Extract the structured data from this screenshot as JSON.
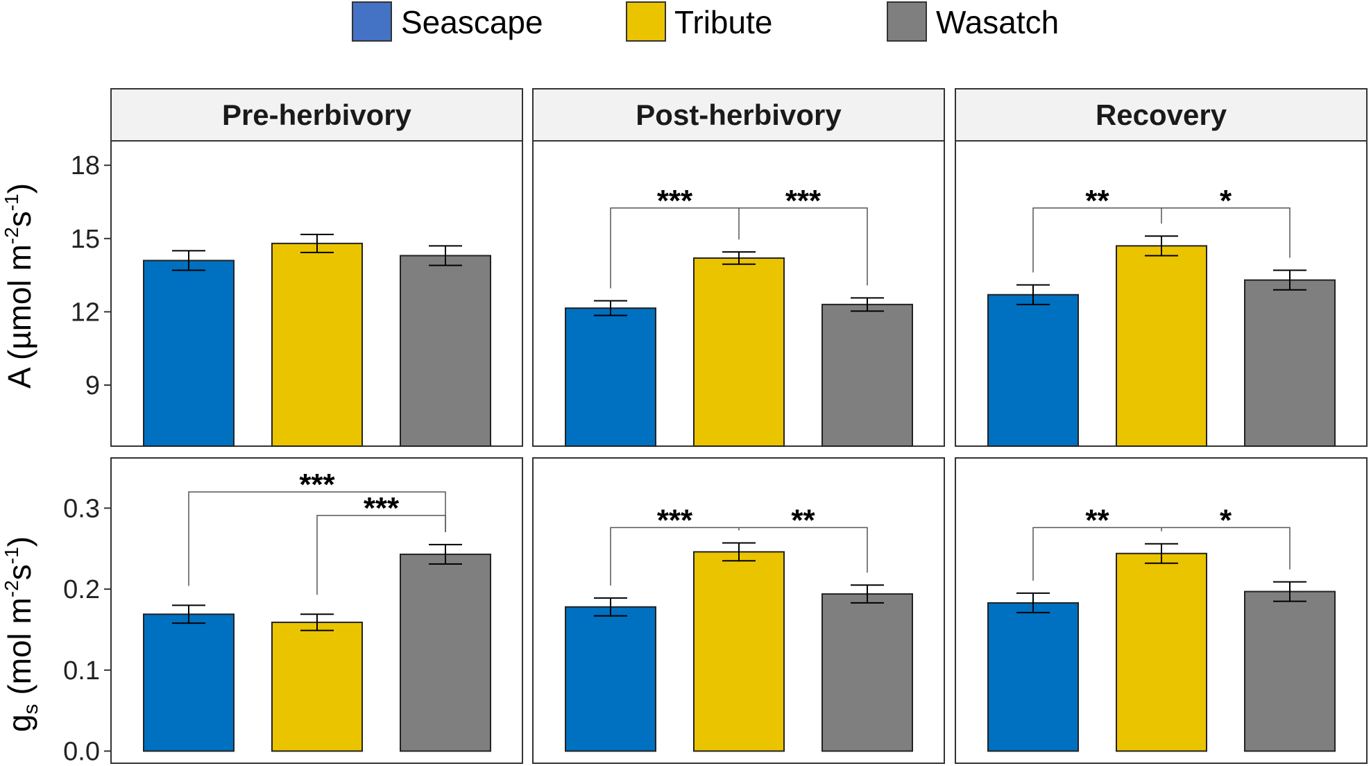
{
  "colors": {
    "seascape": "#0070C0",
    "tribute": "#EBC400",
    "wasatch": "#7F7F7F",
    "legend_seascape": "#4472C4",
    "strip_bg": "#F2F2F2"
  },
  "legend": [
    {
      "name": "Seascape",
      "color_key": "legend_seascape"
    },
    {
      "name": "Tribute",
      "color_key": "tribute"
    },
    {
      "name": "Wasatch",
      "color_key": "wasatch"
    }
  ],
  "y_axis_titles": {
    "top": {
      "main": "A (µmol m",
      "sup1": "-2",
      "mid": "s",
      "sup2": "-1",
      "end": ")"
    },
    "bottom": {
      "main": "g",
      "sub": "s",
      "rest": " (mol m",
      "sup1": "-2",
      "mid": "s",
      "sup2": "-1",
      "end": ")"
    }
  },
  "chart_data": {
    "type": "bar",
    "facets": [
      "Pre-herbivory",
      "Post-herbivory",
      "Recovery"
    ],
    "categories": [
      "Seascape",
      "Tribute",
      "Wasatch"
    ],
    "rows": [
      {
        "measure": "A",
        "ylim": [
          6.5,
          19
        ],
        "ticks": [
          9,
          12,
          15,
          18
        ],
        "tick_labels": [
          "9",
          "12",
          "15",
          "18"
        ],
        "panels": [
          {
            "facet": "Pre-herbivory",
            "values": [
              14.1,
              14.8,
              14.3
            ],
            "errors": [
              0.4,
              0.37,
              0.4
            ],
            "brackets": []
          },
          {
            "facet": "Post-herbivory",
            "values": [
              12.15,
              14.2,
              12.3
            ],
            "errors": [
              0.3,
              0.25,
              0.27
            ],
            "brackets": [
              {
                "type": "split",
                "center": 1,
                "left": 0,
                "right": 2,
                "y": 16.25,
                "labels": [
                  "***",
                  "***"
                ]
              }
            ]
          },
          {
            "facet": "Recovery",
            "values": [
              12.7,
              14.7,
              13.3
            ],
            "errors": [
              0.4,
              0.4,
              0.4
            ],
            "brackets": [
              {
                "type": "split",
                "center": 1,
                "left": 0,
                "right": 2,
                "y": 16.25,
                "labels": [
                  "**",
                  "*"
                ]
              }
            ]
          }
        ]
      },
      {
        "measure": "gs",
        "ylim": [
          -0.015,
          0.362
        ],
        "ticks": [
          0.0,
          0.1,
          0.2,
          0.3
        ],
        "tick_labels": [
          "0.0",
          "0.1",
          "0.2",
          "0.3"
        ],
        "panels": [
          {
            "facet": "Pre-herbivory",
            "values": [
              0.169,
              0.159,
              0.243
            ],
            "errors": [
              0.011,
              0.01,
              0.012
            ],
            "brackets": [
              {
                "type": "pair",
                "from": 0,
                "to": 2,
                "y": 0.32,
                "label": "***"
              },
              {
                "type": "pair",
                "from": 1,
                "to": 2,
                "y": 0.291,
                "label": "***"
              }
            ]
          },
          {
            "facet": "Post-herbivory",
            "values": [
              0.178,
              0.246,
              0.194
            ],
            "errors": [
              0.011,
              0.011,
              0.011
            ],
            "brackets": [
              {
                "type": "split",
                "center": 1,
                "left": 0,
                "right": 2,
                "y": 0.276,
                "labels": [
                  "***",
                  "**"
                ]
              }
            ]
          },
          {
            "facet": "Recovery",
            "values": [
              0.183,
              0.244,
              0.197
            ],
            "errors": [
              0.012,
              0.012,
              0.012
            ],
            "brackets": [
              {
                "type": "split",
                "center": 1,
                "left": 0,
                "right": 2,
                "y": 0.276,
                "labels": [
                  "**",
                  "*"
                ]
              }
            ]
          }
        ]
      }
    ]
  }
}
